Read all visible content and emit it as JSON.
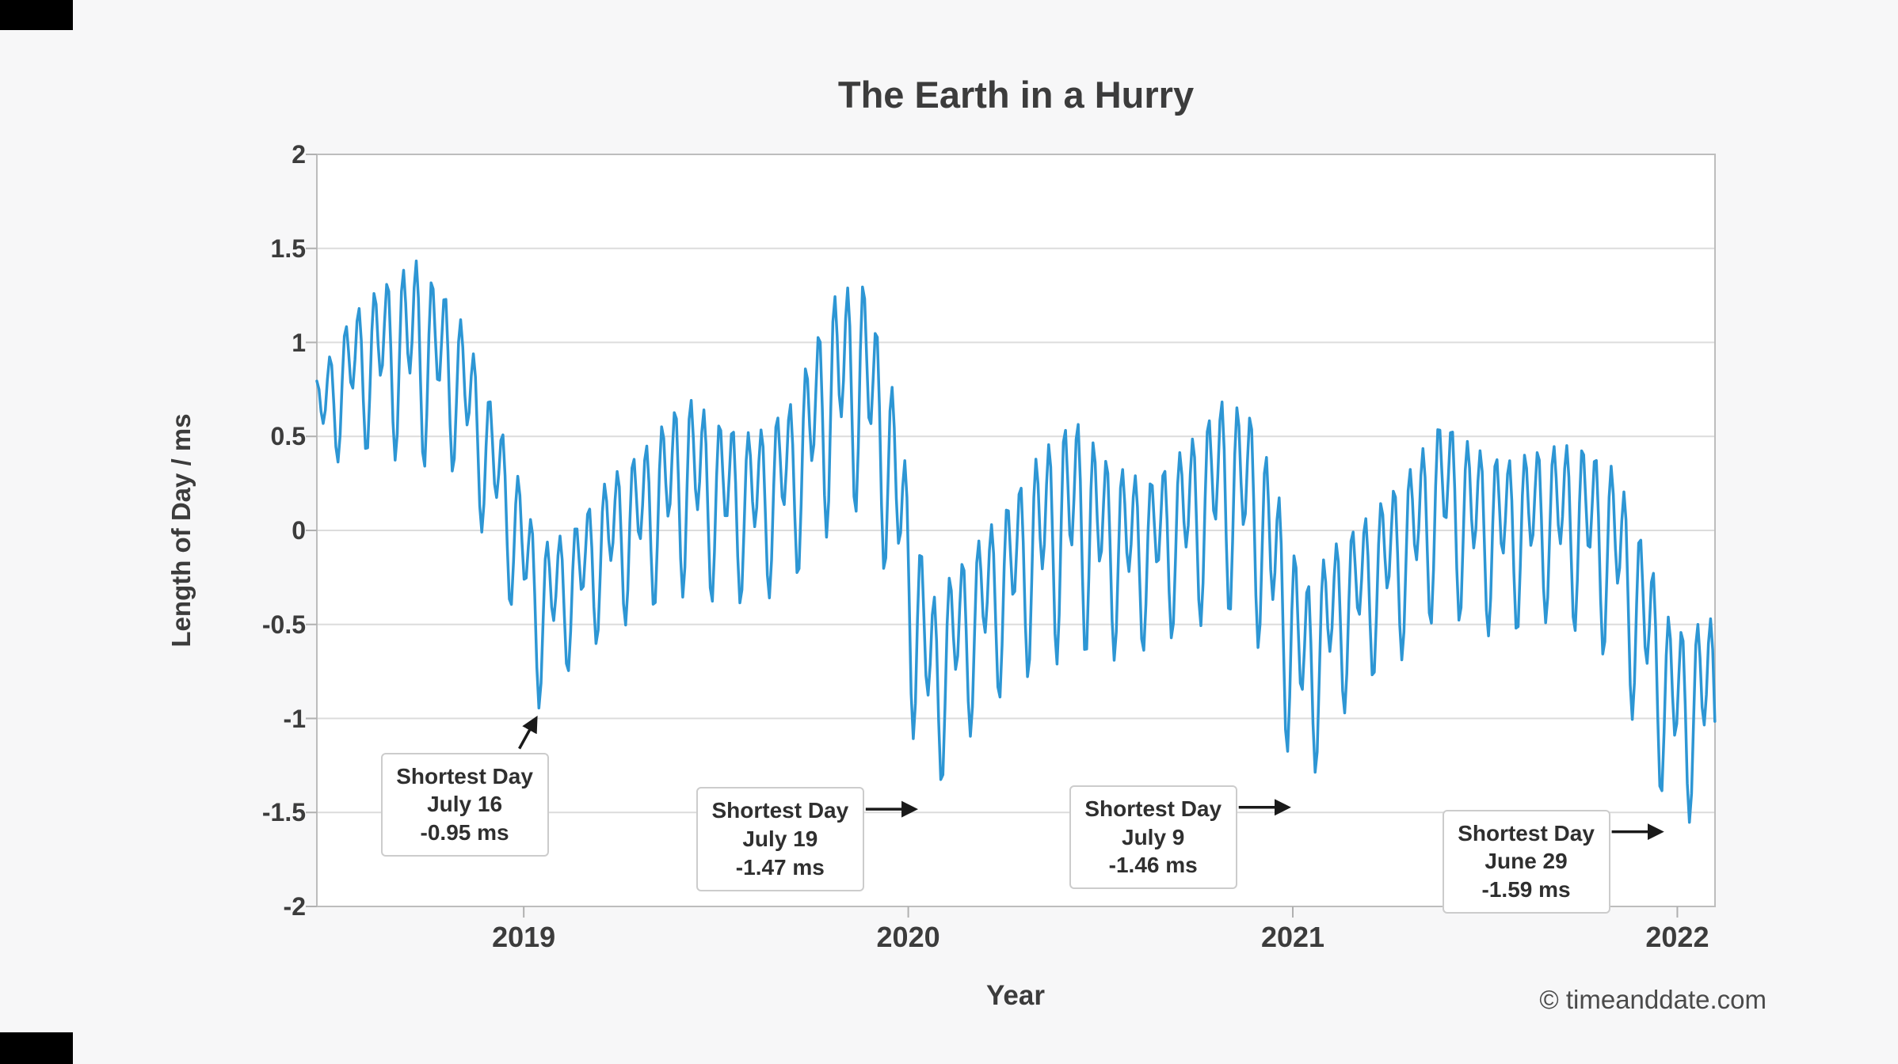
{
  "page": {
    "copyright": "© timeanddate.com"
  },
  "chart_data": {
    "type": "line",
    "title": "The Earth in a Hurry",
    "xlabel": "Year",
    "ylabel": "Length of Day / ms",
    "line_color": "#2d96d4",
    "grid_color": "#dcdcdc",
    "axis_color": "#bdbdbd",
    "tick_color": "#b0b0b0",
    "arrow_color": "#1a1a1a",
    "plot_background": "#ffffff",
    "xlim": [
      2018.962,
      2022.598
    ],
    "ylim": [
      -2,
      2
    ],
    "grid": true,
    "legend": "none",
    "yticks": [
      {
        "value": 2,
        "label": "2"
      },
      {
        "value": 1.5,
        "label": "1.5"
      },
      {
        "value": 1,
        "label": "1"
      },
      {
        "value": 0.5,
        "label": "0.5"
      },
      {
        "value": 0,
        "label": "0"
      },
      {
        "value": -0.5,
        "label": "-0.5"
      },
      {
        "value": -1,
        "label": "-1"
      },
      {
        "value": -1.5,
        "label": "-1.5"
      },
      {
        "value": -2,
        "label": "-2"
      }
    ],
    "xticks": [
      {
        "value": 2019.5,
        "label": "2019"
      },
      {
        "value": 2020.5,
        "label": "2020"
      },
      {
        "value": 2021.5,
        "label": "2021"
      },
      {
        "value": 2022.5,
        "label": "2022"
      }
    ],
    "annotations": [
      {
        "lines": [
          "Shortest Day",
          "July 16",
          "-0.95 ms"
        ],
        "x": 2019.54,
        "y": -0.95,
        "arrow": "up"
      },
      {
        "lines": [
          "Shortest Day",
          "July 19",
          "-1.47 ms"
        ],
        "x": 2020.55,
        "y": -1.47,
        "arrow": "right"
      },
      {
        "lines": [
          "Shortest Day",
          "July 9",
          "-1.46 ms"
        ],
        "x": 2021.52,
        "y": -1.46,
        "arrow": "right"
      },
      {
        "lines": [
          "Shortest Day",
          "June 29",
          "-1.59 ms"
        ],
        "x": 2022.49,
        "y": -1.59,
        "arrow": "right"
      }
    ],
    "series_model": {
      "description": "Daily length-of-day deviation (ms) vs decimal year, read from the chart as an oscillation envelope. y(x) = mid(x) + amp(x)*(0.62*sin(2*pi*(x-2019.54)/P1 - pi/2) + 0.38*sin(2*pi*(x-2019.54)/P2 - pi/2)); mid/amp linearly interpolated between control points [x, mid, amp].",
      "period1_years": 0.0374,
      "period2_years": 0.0748,
      "comp1_frac": 0.62,
      "comp2_frac": 0.38,
      "phase_anchor_x": 2019.54,
      "sample_step_years": 0.0055,
      "envelope": [
        [
          2018.962,
          0.6,
          0.3
        ],
        [
          2019.05,
          0.85,
          0.45
        ],
        [
          2019.13,
          0.95,
          0.55
        ],
        [
          2019.22,
          1.0,
          0.67
        ],
        [
          2019.32,
          0.85,
          0.55
        ],
        [
          2019.4,
          0.45,
          0.5
        ],
        [
          2019.48,
          0.0,
          0.5
        ],
        [
          2019.54,
          -0.42,
          0.53
        ],
        [
          2019.62,
          -0.3,
          0.45
        ],
        [
          2019.72,
          -0.05,
          0.5
        ],
        [
          2019.82,
          0.1,
          0.55
        ],
        [
          2019.92,
          0.3,
          0.65
        ],
        [
          2020.0,
          0.2,
          0.6
        ],
        [
          2020.1,
          0.15,
          0.55
        ],
        [
          2020.2,
          0.3,
          0.6
        ],
        [
          2020.3,
          0.75,
          0.75
        ],
        [
          2020.38,
          0.85,
          0.75
        ],
        [
          2020.45,
          0.4,
          0.7
        ],
        [
          2020.52,
          -0.45,
          0.75
        ],
        [
          2020.56,
          -0.8,
          0.67
        ],
        [
          2020.64,
          -0.55,
          0.6
        ],
        [
          2020.74,
          -0.3,
          0.6
        ],
        [
          2020.84,
          -0.05,
          0.7
        ],
        [
          2020.93,
          0.1,
          0.78
        ],
        [
          2021.02,
          -0.05,
          0.65
        ],
        [
          2021.12,
          -0.1,
          0.55
        ],
        [
          2021.22,
          0.05,
          0.6
        ],
        [
          2021.32,
          0.25,
          0.7
        ],
        [
          2021.4,
          0.15,
          0.7
        ],
        [
          2021.47,
          -0.35,
          0.75
        ],
        [
          2021.53,
          -0.75,
          0.7
        ],
        [
          2021.61,
          -0.45,
          0.58
        ],
        [
          2021.71,
          -0.25,
          0.55
        ],
        [
          2021.81,
          -0.05,
          0.6
        ],
        [
          2021.89,
          0.2,
          0.63
        ],
        [
          2021.97,
          0.05,
          0.6
        ],
        [
          2022.06,
          0.0,
          0.58
        ],
        [
          2022.16,
          0.08,
          0.57
        ],
        [
          2022.26,
          0.05,
          0.62
        ],
        [
          2022.34,
          -0.1,
          0.65
        ],
        [
          2022.42,
          -0.55,
          0.68
        ],
        [
          2022.49,
          -0.95,
          0.64
        ],
        [
          2022.56,
          -0.9,
          0.63
        ],
        [
          2022.598,
          -0.85,
          0.6
        ]
      ]
    }
  }
}
